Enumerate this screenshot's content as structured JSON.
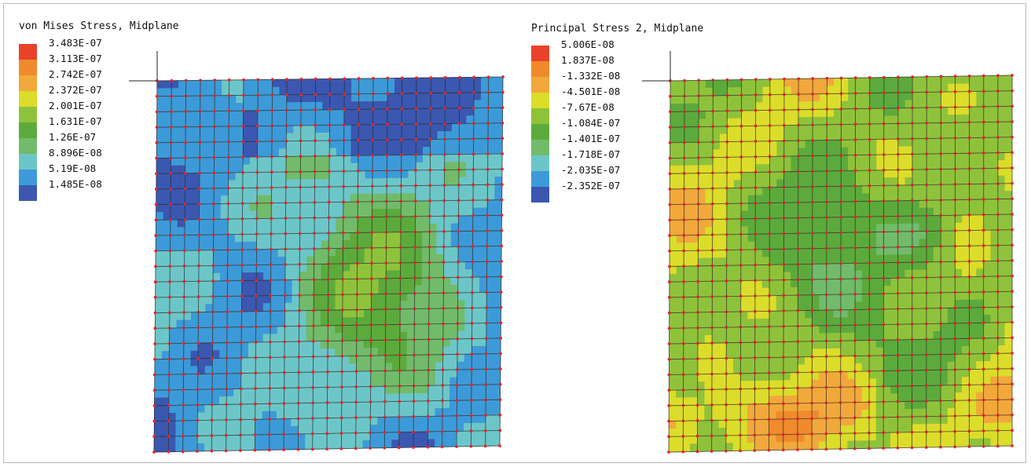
{
  "panels": [
    {
      "title": "von Mises Stress, Midplane",
      "legend": [
        {
          "label": "3.483E-07",
          "color": "#e8432a"
        },
        {
          "label": "3.113E-07",
          "color": "#f08a2c"
        },
        {
          "label": "2.742E-07",
          "color": "#f2a83a"
        },
        {
          "label": "2.372E-07",
          "color": "#dcdc2a"
        },
        {
          "label": "2.001E-07",
          "color": "#8fc23b"
        },
        {
          "label": "1.631E-07",
          "color": "#5daa3c"
        },
        {
          "label": "1.26E-07",
          "color": "#72bb6a"
        },
        {
          "label": "8.896E-08",
          "color": "#6cc6c8"
        },
        {
          "label": "5.19E-08",
          "color": "#3d9ad8"
        },
        {
          "label": "1.485E-08",
          "color": "#3b57b0"
        }
      ]
    },
    {
      "title": "Principal Stress 2, Midplane",
      "legend": [
        {
          "label": "5.006E-08",
          "color": "#e8432a"
        },
        {
          "label": "1.837E-08",
          "color": "#f08a2c"
        },
        {
          "label": "-1.332E-08",
          "color": "#f2a83a"
        },
        {
          "label": "-4.501E-08",
          "color": "#dcdc2a"
        },
        {
          "label": "-7.67E-08",
          "color": "#8fc23b"
        },
        {
          "label": "-1.084E-07",
          "color": "#5daa3c"
        },
        {
          "label": "-1.401E-07",
          "color": "#72bb6a"
        },
        {
          "label": "-1.718E-07",
          "color": "#6cc6c8"
        },
        {
          "label": "-2.035E-07",
          "color": "#3d9ad8"
        },
        {
          "label": "-2.352E-07",
          "color": "#3b57b0"
        }
      ]
    }
  ],
  "mesh": {
    "divisions": 24,
    "node_color": "#e0282a",
    "line_color": "#2a2a2a"
  }
}
